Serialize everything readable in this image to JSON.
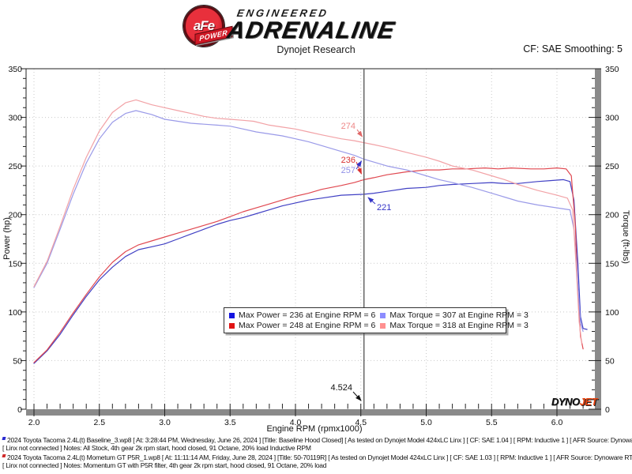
{
  "header": {
    "logo": {
      "badge_text": "aFe",
      "badge_sub": "POWER",
      "line1": "ENGINEERED",
      "line2": "ADRENALINE"
    },
    "title": "Dynojet Research",
    "smoothing": "CF: SAE Smoothing: 5"
  },
  "chart_data": {
    "type": "line",
    "title": "Dynojet Research",
    "xlabel": "Engine RPM (rpmx1000)",
    "ylabel_left": "Power (hp)",
    "ylabel_right": "Torque (ft-lbs)",
    "xlim": [
      2.0,
      6.3
    ],
    "ylim": [
      0,
      350
    ],
    "grid": "dotted",
    "legend_position": "lower center",
    "cursor_rpm": 4.524,
    "rpm_ticks": [
      "2.0",
      "2.5",
      "3.0",
      "3.5",
      "4.0",
      "4.5",
      "5.0",
      "5.5",
      "6.0"
    ],
    "power_ticks": [
      "0",
      "50",
      "100",
      "150",
      "200",
      "250",
      "300",
      "350"
    ],
    "torque_ticks": [
      "0",
      "50",
      "100",
      "150",
      "200",
      "250",
      "300",
      "350"
    ],
    "series": [
      {
        "name": "Baseline Power",
        "unit": "hp",
        "color": "#4040c4",
        "max": "236 @ 6000",
        "points": [
          [
            2.0,
            47
          ],
          [
            2.1,
            60
          ],
          [
            2.2,
            77
          ],
          [
            2.3,
            97
          ],
          [
            2.4,
            116
          ],
          [
            2.5,
            133
          ],
          [
            2.6,
            146
          ],
          [
            2.7,
            157
          ],
          [
            2.8,
            164
          ],
          [
            2.9,
            167
          ],
          [
            3.0,
            170
          ],
          [
            3.1,
            175
          ],
          [
            3.2,
            180
          ],
          [
            3.3,
            185
          ],
          [
            3.4,
            190
          ],
          [
            3.5,
            194
          ],
          [
            3.6,
            197
          ],
          [
            3.7,
            201
          ],
          [
            3.8,
            205
          ],
          [
            3.9,
            209
          ],
          [
            4.0,
            212
          ],
          [
            4.1,
            215
          ],
          [
            4.2,
            217
          ],
          [
            4.35,
            220
          ],
          [
            4.524,
            221
          ],
          [
            4.6,
            222
          ],
          [
            4.7,
            224
          ],
          [
            4.85,
            227
          ],
          [
            5.0,
            228
          ],
          [
            5.1,
            230
          ],
          [
            5.2,
            231
          ],
          [
            5.35,
            232
          ],
          [
            5.5,
            233
          ],
          [
            5.6,
            232
          ],
          [
            5.7,
            232
          ],
          [
            5.85,
            234
          ],
          [
            5.95,
            235
          ],
          [
            6.05,
            236
          ],
          [
            6.1,
            234
          ],
          [
            6.13,
            215
          ],
          [
            6.16,
            150
          ],
          [
            6.18,
            95
          ],
          [
            6.2,
            83
          ],
          [
            6.23,
            82
          ]
        ]
      },
      {
        "name": "Momentum GT Power",
        "unit": "hp",
        "color": "#e04850",
        "max": "248 @ 6000",
        "points": [
          [
            2.0,
            48
          ],
          [
            2.1,
            61
          ],
          [
            2.2,
            79
          ],
          [
            2.3,
            99
          ],
          [
            2.4,
            118
          ],
          [
            2.5,
            136
          ],
          [
            2.6,
            151
          ],
          [
            2.7,
            162
          ],
          [
            2.8,
            169
          ],
          [
            2.9,
            173
          ],
          [
            3.0,
            177
          ],
          [
            3.1,
            181
          ],
          [
            3.2,
            185
          ],
          [
            3.3,
            189
          ],
          [
            3.4,
            193
          ],
          [
            3.5,
            198
          ],
          [
            3.6,
            203
          ],
          [
            3.7,
            207
          ],
          [
            3.8,
            211
          ],
          [
            3.9,
            215
          ],
          [
            4.0,
            219
          ],
          [
            4.1,
            222
          ],
          [
            4.2,
            226
          ],
          [
            4.35,
            230
          ],
          [
            4.45,
            233
          ],
          [
            4.524,
            236
          ],
          [
            4.6,
            238
          ],
          [
            4.7,
            241
          ],
          [
            4.85,
            244
          ],
          [
            5.0,
            246
          ],
          [
            5.1,
            246
          ],
          [
            5.2,
            247
          ],
          [
            5.3,
            247
          ],
          [
            5.45,
            248
          ],
          [
            5.55,
            247
          ],
          [
            5.65,
            248
          ],
          [
            5.8,
            247
          ],
          [
            5.9,
            247
          ],
          [
            6.0,
            248
          ],
          [
            6.07,
            247
          ],
          [
            6.11,
            240
          ],
          [
            6.14,
            190
          ],
          [
            6.16,
            120
          ],
          [
            6.18,
            75
          ],
          [
            6.2,
            62
          ]
        ]
      },
      {
        "name": "Baseline Torque",
        "unit": "ft-lbs",
        "color": "#9a9ae8",
        "max": "307 @ 3000",
        "points": [
          [
            2.0,
            125
          ],
          [
            2.1,
            150
          ],
          [
            2.2,
            185
          ],
          [
            2.3,
            221
          ],
          [
            2.4,
            253
          ],
          [
            2.5,
            278
          ],
          [
            2.6,
            295
          ],
          [
            2.7,
            304
          ],
          [
            2.78,
            307
          ],
          [
            2.9,
            303
          ],
          [
            3.0,
            298
          ],
          [
            3.1,
            296
          ],
          [
            3.2,
            294
          ],
          [
            3.3,
            293
          ],
          [
            3.4,
            292
          ],
          [
            3.5,
            291
          ],
          [
            3.6,
            288
          ],
          [
            3.7,
            285
          ],
          [
            3.8,
            283
          ],
          [
            3.9,
            281
          ],
          [
            4.0,
            278
          ],
          [
            4.1,
            275
          ],
          [
            4.2,
            271
          ],
          [
            4.35,
            265
          ],
          [
            4.45,
            261
          ],
          [
            4.524,
            257
          ],
          [
            4.6,
            254
          ],
          [
            4.7,
            250
          ],
          [
            4.85,
            246
          ],
          [
            5.0,
            240
          ],
          [
            5.1,
            236
          ],
          [
            5.2,
            233
          ],
          [
            5.35,
            228
          ],
          [
            5.5,
            222
          ],
          [
            5.6,
            218
          ],
          [
            5.7,
            214
          ],
          [
            5.85,
            210
          ],
          [
            6.0,
            207
          ],
          [
            6.1,
            205
          ],
          [
            6.13,
            185
          ],
          [
            6.16,
            128
          ],
          [
            6.18,
            88
          ],
          [
            6.2,
            80
          ]
        ]
      },
      {
        "name": "Momentum GT Torque",
        "unit": "ft-lbs",
        "color": "#f2a2a6",
        "max": "318 @ 3000",
        "points": [
          [
            2.0,
            126
          ],
          [
            2.1,
            152
          ],
          [
            2.2,
            188
          ],
          [
            2.3,
            226
          ],
          [
            2.4,
            259
          ],
          [
            2.5,
            286
          ],
          [
            2.6,
            305
          ],
          [
            2.7,
            315
          ],
          [
            2.78,
            318
          ],
          [
            2.9,
            313
          ],
          [
            3.0,
            310
          ],
          [
            3.1,
            307
          ],
          [
            3.2,
            304
          ],
          [
            3.3,
            301
          ],
          [
            3.4,
            299
          ],
          [
            3.5,
            298
          ],
          [
            3.6,
            297
          ],
          [
            3.68,
            296
          ],
          [
            3.8,
            292
          ],
          [
            3.9,
            290
          ],
          [
            4.0,
            288
          ],
          [
            4.1,
            285
          ],
          [
            4.2,
            282
          ],
          [
            4.35,
            278
          ],
          [
            4.45,
            276
          ],
          [
            4.524,
            274
          ],
          [
            4.6,
            272
          ],
          [
            4.7,
            269
          ],
          [
            4.85,
            264
          ],
          [
            5.0,
            259
          ],
          [
            5.1,
            255
          ],
          [
            5.2,
            250
          ],
          [
            5.35,
            246
          ],
          [
            5.5,
            240
          ],
          [
            5.6,
            236
          ],
          [
            5.7,
            231
          ],
          [
            5.85,
            225
          ],
          [
            6.0,
            220
          ],
          [
            6.08,
            217
          ],
          [
            6.12,
            205
          ],
          [
            6.15,
            140
          ],
          [
            6.17,
            90
          ],
          [
            6.19,
            68
          ]
        ]
      }
    ]
  },
  "legend": {
    "entries": [
      {
        "color": "#1414e0",
        "label": "Max Power = 236 at Engine RPM = 6"
      },
      {
        "color": "#8c8cff",
        "label": "Max Torque = 307 at Engine RPM = 3"
      },
      {
        "color": "#e01414",
        "label": "Max Power = 248 at Engine RPM = 6"
      },
      {
        "color": "#ff9090",
        "label": "Max Torque = 318 at Engine RPM = 3"
      }
    ]
  },
  "cursor": {
    "rpm_label": "4.524",
    "values": [
      {
        "label": "274",
        "color": "#ee8888"
      },
      {
        "label": "236",
        "color": "#d83030"
      },
      {
        "label": "257",
        "color": "#9090e8"
      },
      {
        "label": "221",
        "color": "#3434c8"
      }
    ]
  },
  "watermark": {
    "part1": "DYNO",
    "part2": "JET"
  },
  "footer": {
    "lines": [
      {
        "marker_color": "#2a2ad0",
        "text": "2024 Toyota Tacoma 2.4L(t) Baseline_3.wp8 [ At: 3:28:44 PM, Wednesday, June 26, 2024 ] [Title: Baseline Hood Closed]  [ As tested on Dynojet Model 424xLC Linx ] [ CF: SAE 1.04 ] [ RPM: Inductive 1 ] [ AFR Source: Dynoware RT WB ]"
      },
      {
        "text": "[ Linx not connected ] Notes: All Stock, 4th gear 2k rpm start, hood closed, 91 Octane, 20% load Inductive RPM"
      },
      {
        "marker_color": "#d02a2a",
        "text": "2024 Toyota Tacoma 2.4L(t) Mometum GT P5R_1.wp8 [ At: 11:11:14 AM, Friday, June 28, 2024 ] [Title: 50-70119R]  [ As tested on Dynojet Model 424xLC Linx ] [ CF: SAE 1.03 ] [ RPM: Inductive 1 ] [ AFR Source: Dynoware RT WB ]"
      },
      {
        "text": "[ Linx not connected ] Notes: Momentum GT with P5R filter, 4th gear 2k rpm start, hood closed, 91 Octane, 20% load"
      }
    ]
  }
}
